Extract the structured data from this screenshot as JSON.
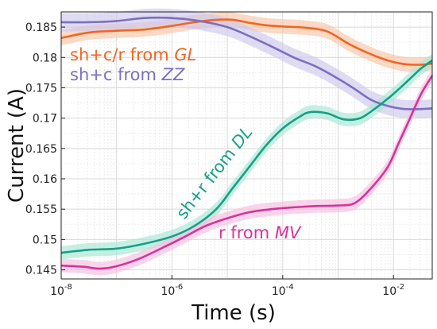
{
  "chart_data": {
    "type": "line",
    "title": "",
    "xlabel": "Time (s)",
    "ylabel": "Current (A)",
    "xscale": "log",
    "xlim_exp": [
      -8,
      -1.3
    ],
    "ylim": [
      0.1435,
      0.1875
    ],
    "grid": true,
    "x_ticks": [
      {
        "exp": -8,
        "base": "10",
        "sup": "-8"
      },
      {
        "exp": -6,
        "base": "10",
        "sup": "-6"
      },
      {
        "exp": -4,
        "base": "10",
        "sup": "-4"
      },
      {
        "exp": -2,
        "base": "10",
        "sup": "-2"
      }
    ],
    "y_ticks": [
      {
        "value": 0.145,
        "label": "0.145"
      },
      {
        "value": 0.15,
        "label": "0.15"
      },
      {
        "value": 0.155,
        "label": "0.155"
      },
      {
        "value": 0.16,
        "label": "0.16"
      },
      {
        "value": 0.165,
        "label": "0.165"
      },
      {
        "value": 0.17,
        "label": "0.17"
      },
      {
        "value": 0.175,
        "label": "0.175"
      },
      {
        "value": 0.18,
        "label": "0.18"
      },
      {
        "value": 0.185,
        "label": "0.185"
      }
    ],
    "series": [
      {
        "name": "sh+c/r from GL",
        "label_prefix": "sh+c/r from ",
        "label_italic": "GL",
        "color": "#f26522",
        "band_color": "#f9c4a6",
        "band_half_width": 0.0012,
        "x_exp": [
          -8,
          -7.5,
          -7,
          -6.5,
          -6,
          -5.6,
          -5.2,
          -4.9,
          -4.6,
          -4.3,
          -4,
          -3.6,
          -3.2,
          -2.8,
          -2.4,
          -2.1,
          -1.8,
          -1.5,
          -1.3
        ],
        "values": [
          0.1832,
          0.1841,
          0.1844,
          0.1846,
          0.1852,
          0.1858,
          0.1862,
          0.1862,
          0.1857,
          0.1853,
          0.1851,
          0.1849,
          0.1843,
          0.1822,
          0.1805,
          0.1795,
          0.1789,
          0.1788,
          0.179
        ]
      },
      {
        "name": "sh+c from ZZ",
        "label_prefix": "sh+c from ",
        "label_italic": "ZZ",
        "color": "#7b6fc1",
        "band_color": "#cdc7ec",
        "band_half_width": 0.0015,
        "x_exp": [
          -8,
          -7.5,
          -7,
          -6.5,
          -6,
          -5.5,
          -5,
          -4.6,
          -4.2,
          -3.8,
          -3.4,
          -3,
          -2.7,
          -2.4,
          -2.1,
          -1.8,
          -1.5,
          -1.3
        ],
        "values": [
          0.1858,
          0.1858,
          0.186,
          0.1865,
          0.1865,
          0.186,
          0.185,
          0.1835,
          0.1818,
          0.18,
          0.1785,
          0.1765,
          0.1748,
          0.173,
          0.172,
          0.1715,
          0.1715,
          0.1716
        ]
      },
      {
        "name": "sh+r from DL",
        "label_prefix": "sh+r from ",
        "label_italic": "DL",
        "color": "#16a085",
        "band_color": "#a7e6d5",
        "band_half_width": 0.0011,
        "x_exp": [
          -8,
          -7.5,
          -7,
          -6.5,
          -6,
          -5.6,
          -5.2,
          -4.9,
          -4.6,
          -4.3,
          -4,
          -3.7,
          -3.5,
          -3.2,
          -2.9,
          -2.6,
          -2.3,
          -2,
          -1.7,
          -1.5,
          -1.3
        ],
        "values": [
          0.1478,
          0.1483,
          0.1485,
          0.1493,
          0.1505,
          0.1522,
          0.155,
          0.1585,
          0.162,
          0.1655,
          0.1683,
          0.1702,
          0.171,
          0.1708,
          0.1698,
          0.17,
          0.1718,
          0.174,
          0.1765,
          0.1782,
          0.1795
        ]
      },
      {
        "name": "r from MV",
        "label_prefix": "r from ",
        "label_italic": "MV",
        "color": "#d6339a",
        "band_color": "#f6bfe0",
        "band_half_width": 0.0011,
        "x_exp": [
          -8,
          -7.6,
          -7.3,
          -7,
          -6.6,
          -6.2,
          -5.8,
          -5.4,
          -5,
          -4.6,
          -4.2,
          -3.8,
          -3.4,
          -3,
          -2.7,
          -2.4,
          -2.1,
          -1.9,
          -1.7,
          -1.5,
          -1.3
        ],
        "values": [
          0.1457,
          0.1455,
          0.1452,
          0.1456,
          0.1468,
          0.1485,
          0.1503,
          0.1522,
          0.1535,
          0.1545,
          0.155,
          0.1553,
          0.1555,
          0.1556,
          0.156,
          0.1585,
          0.162,
          0.166,
          0.17,
          0.174,
          0.177
        ]
      }
    ]
  }
}
